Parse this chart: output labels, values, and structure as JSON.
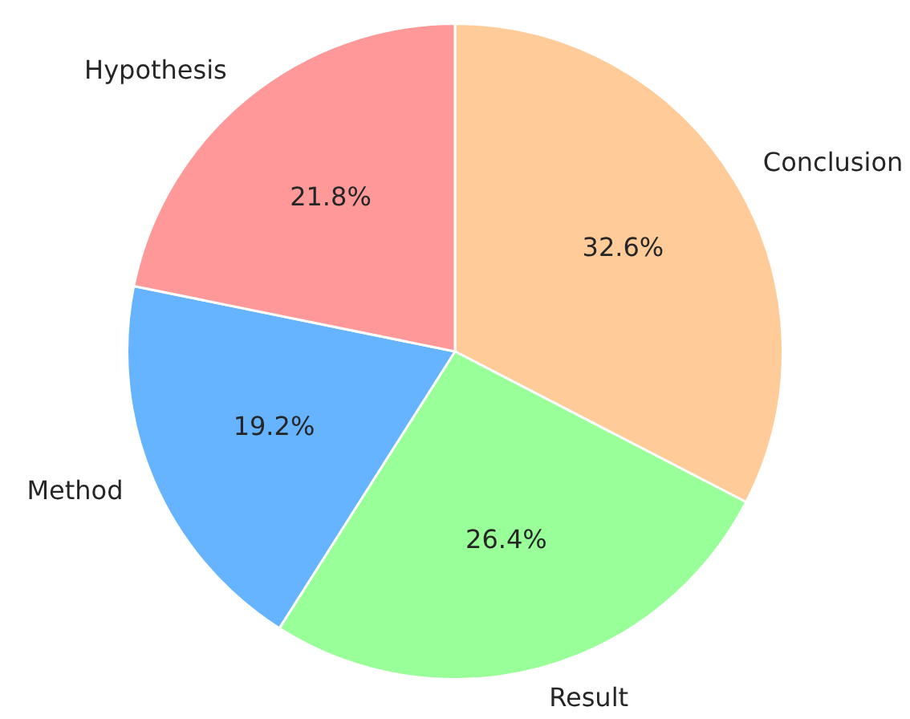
{
  "chart_data": {
    "type": "pie",
    "categories": [
      "Conclusion",
      "Result",
      "Method",
      "Hypothesis"
    ],
    "values": [
      32.6,
      26.4,
      19.2,
      21.8
    ],
    "colors": [
      "#ffcc99",
      "#99ff99",
      "#66b3ff",
      "#ff9999"
    ],
    "value_labels": [
      "32.6%",
      "26.4%",
      "19.2%",
      "21.8%"
    ],
    "legend": false
  }
}
